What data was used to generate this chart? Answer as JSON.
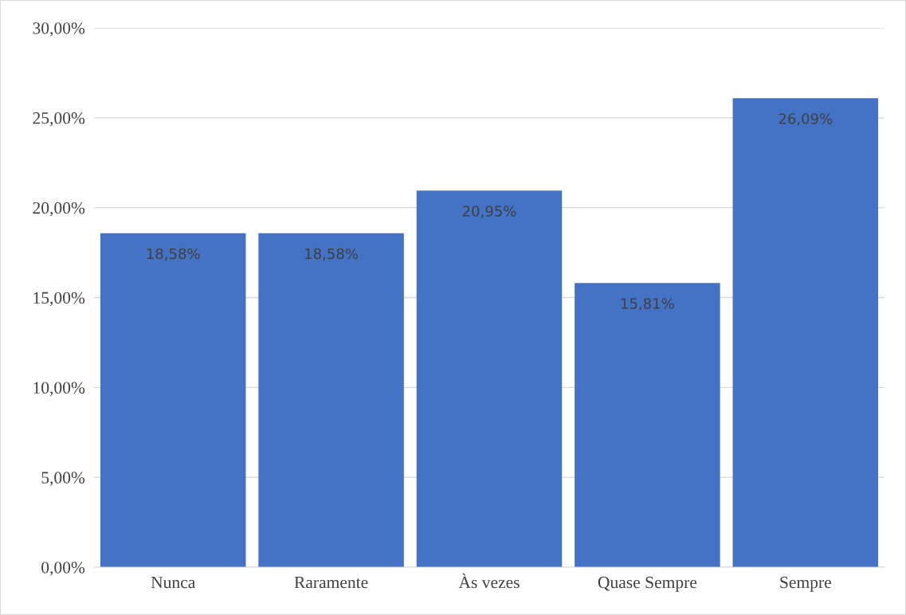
{
  "chart_data": {
    "type": "bar",
    "categories": [
      "Nunca",
      "Raramente",
      "Às vezes",
      "Quase Sempre",
      "Sempre"
    ],
    "values": [
      18.58,
      18.58,
      20.95,
      15.81,
      26.09
    ],
    "value_labels": [
      "18,58%",
      "18,58%",
      "20,95%",
      "15,81%",
      "26,09%"
    ],
    "color": "#4472c4",
    "ylim": [
      0,
      30
    ],
    "yticks": [
      {
        "value": 0,
        "label": "0,00%"
      },
      {
        "value": 5,
        "label": "5,00%"
      },
      {
        "value": 10,
        "label": "10,00%"
      },
      {
        "value": 15,
        "label": "15,00%"
      },
      {
        "value": 20,
        "label": "20,00%"
      },
      {
        "value": 25,
        "label": "25,00%"
      },
      {
        "value": 30,
        "label": "30,00%"
      }
    ],
    "grid": "y",
    "legend": false
  }
}
